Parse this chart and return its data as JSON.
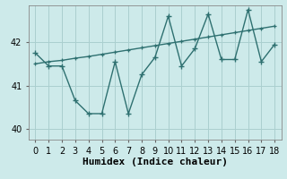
{
  "x": [
    0,
    1,
    2,
    3,
    4,
    5,
    6,
    7,
    8,
    9,
    10,
    11,
    12,
    13,
    14,
    15,
    16,
    17,
    18
  ],
  "y_main": [
    41.75,
    41.45,
    41.45,
    40.65,
    40.35,
    40.35,
    41.55,
    40.35,
    41.25,
    41.65,
    42.6,
    41.45,
    41.85,
    42.65,
    41.6,
    41.6,
    42.75,
    41.55,
    41.95
  ],
  "y_trend": [
    41.5,
    41.55,
    41.58,
    41.63,
    41.67,
    41.72,
    41.77,
    41.82,
    41.87,
    41.92,
    41.97,
    42.02,
    42.07,
    42.12,
    42.17,
    42.22,
    42.27,
    42.32,
    42.37
  ],
  "color": "#2e7070",
  "bg_color": "#cdeaea",
  "grid_color": "#aacfcf",
  "xlabel": "Humidex (Indice chaleur)",
  "ylim": [
    39.75,
    42.85
  ],
  "xlim": [
    -0.5,
    18.5
  ],
  "yticks": [
    40,
    41,
    42
  ],
  "xticks": [
    0,
    1,
    2,
    3,
    4,
    5,
    6,
    7,
    8,
    9,
    10,
    11,
    12,
    13,
    14,
    15,
    16,
    17,
    18
  ],
  "xlabel_fontsize": 8,
  "tick_fontsize": 7,
  "linewidth": 1.0,
  "marker": "+"
}
